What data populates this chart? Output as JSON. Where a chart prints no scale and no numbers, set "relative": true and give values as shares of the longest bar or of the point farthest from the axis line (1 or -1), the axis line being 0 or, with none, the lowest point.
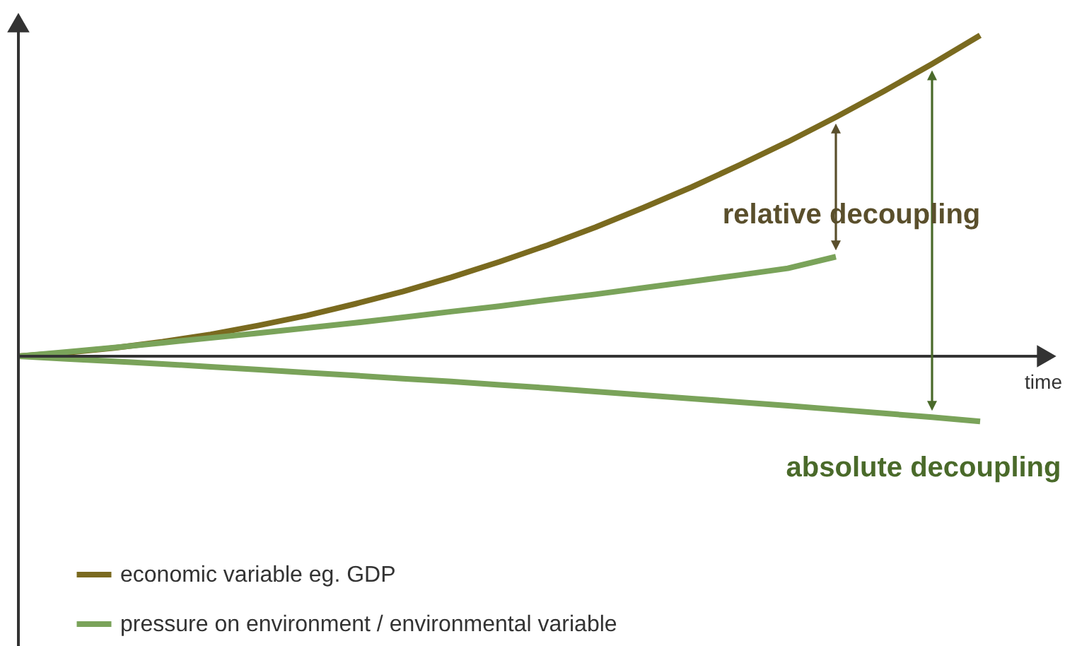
{
  "chart_data": {
    "type": "line",
    "relative": true,
    "xlabel": "time",
    "legend": "bottom left",
    "categories": [
      null,
      null,
      null,
      null,
      null,
      null,
      null,
      null,
      null,
      null,
      null,
      null,
      null,
      null,
      null,
      null,
      null,
      null,
      null,
      null,
      null
    ],
    "series": [
      {
        "name": "economic variable eg. GDP",
        "color": "#7a6a1f",
        "values": [
          0,
          0.011,
          0.026,
          0.045,
          0.068,
          0.096,
          0.127,
          0.163,
          0.202,
          0.246,
          0.294,
          0.346,
          0.402,
          0.463,
          0.527,
          0.596,
          0.668,
          0.745,
          0.826,
          0.911,
          1
        ]
      },
      {
        "name": "pressure on environment / environmental variable",
        "color": "#7aa35a",
        "values": [
          0,
          0.013,
          0.027,
          0.042,
          0.057,
          0.072,
          0.088,
          0.104,
          0.121,
          0.139,
          0.156,
          0.175,
          0.193,
          0.213,
          0.233,
          0.253,
          0.274,
          0.31,
          null,
          null,
          null
        ]
      },
      {
        "color": "#7aa35a",
        "values": [
          0,
          -0.008,
          -0.016,
          -0.024,
          -0.033,
          -0.042,
          -0.051,
          -0.06,
          -0.07,
          -0.079,
          -0.089,
          -0.099,
          -0.11,
          -0.121,
          -0.132,
          -0.143,
          -0.154,
          -0.166,
          -0.178,
          -0.19,
          -0.203
        ]
      }
    ],
    "annotations": [
      "relative decoupling",
      "absolute decoupling"
    ]
  }
}
